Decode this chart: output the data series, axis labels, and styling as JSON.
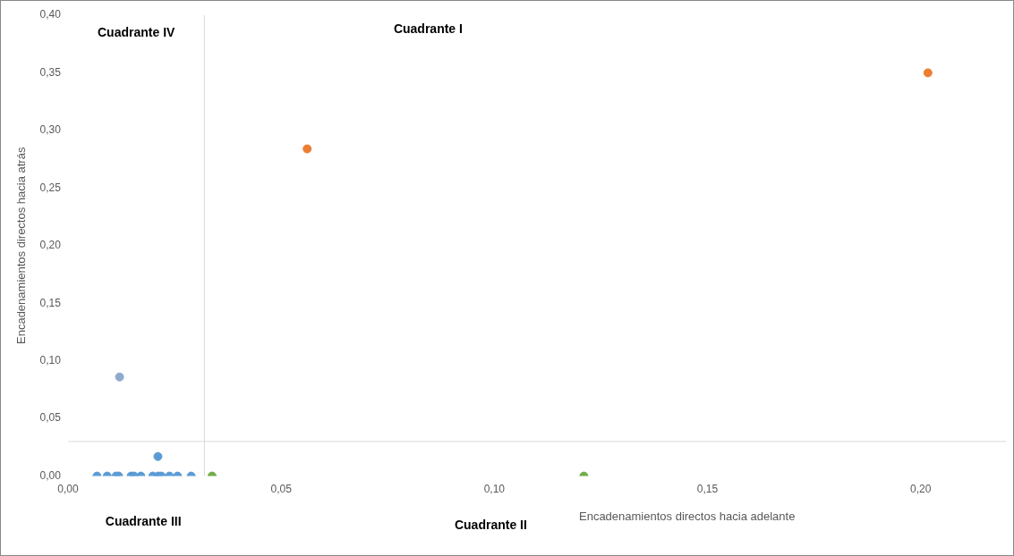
{
  "chart_data": {
    "type": "scatter",
    "xlabel": "Encadenamientos directos hacia adelante",
    "ylabel": "Encadenamientos directos hacia atrás",
    "series": [
      {
        "color": "#5b9bd5",
        "x": [
          0.0068,
          0.0092,
          0.0113,
          0.0119,
          0.0148,
          0.0155,
          0.0171,
          0.0199,
          0.0212,
          0.0219,
          0.0238,
          0.0257,
          0.0289,
          0.0211
        ],
        "values": [
          0,
          0,
          0,
          0,
          0,
          0,
          0,
          0,
          0,
          0,
          0,
          0,
          0,
          0.017
        ]
      },
      {
        "color": "#ed7d31",
        "x": [
          0.0561,
          0.2017
        ],
        "values": [
          0.284,
          0.35
        ]
      },
      {
        "color": "#70ad47",
        "x": [
          0.0338,
          0.121
        ],
        "values": [
          0,
          0
        ]
      },
      {
        "color": "#8faacc",
        "x": [
          0.0121
        ],
        "values": [
          0.086
        ]
      }
    ],
    "xlim": [
      0,
      0.22
    ],
    "xticks": [
      {
        "value": 0,
        "label": "0,00"
      },
      {
        "value": 0.05,
        "label": "0,05"
      },
      {
        "value": 0.1,
        "label": "0,10"
      },
      {
        "value": 0.15,
        "label": "0,15"
      },
      {
        "value": 0.2,
        "label": "0,20"
      }
    ],
    "ylim": [
      0,
      0.4
    ],
    "yticks": [
      {
        "value": 0,
        "label": "0,00"
      },
      {
        "value": 0.05,
        "label": "0,05"
      },
      {
        "value": 0.1,
        "label": "0,10"
      },
      {
        "value": 0.15,
        "label": "0,15"
      },
      {
        "value": 0.2,
        "label": "0,20"
      },
      {
        "value": 0.25,
        "label": "0,25"
      },
      {
        "value": 0.3,
        "label": "0,30"
      },
      {
        "value": 0.35,
        "label": "0,35"
      },
      {
        "value": 0.4,
        "label": "0,40"
      }
    ],
    "ref_lines": [
      {
        "axis": "x",
        "value": 0.032,
        "color": "#d9d9d9"
      },
      {
        "axis": "y",
        "value": 0.03,
        "color": "#d9d9d9"
      }
    ],
    "annotations": [
      "Cuadrante IV",
      "Cuadrante I",
      "Cuadrante III",
      "Cuadrante II"
    ],
    "marker": "circle",
    "grid": false,
    "legend": false
  }
}
